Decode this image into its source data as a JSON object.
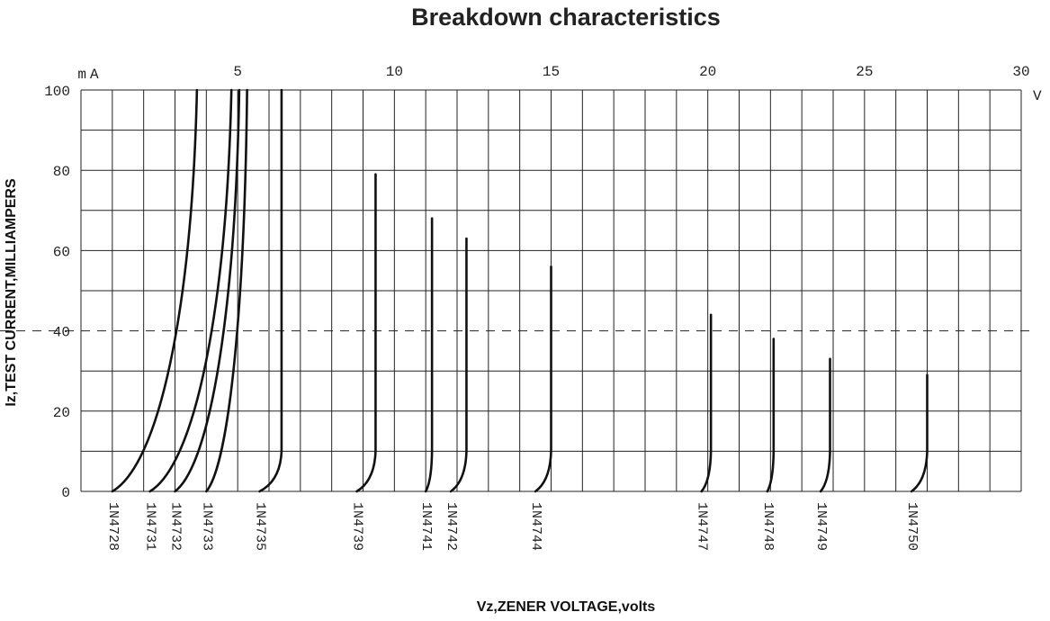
{
  "chart_data": {
    "type": "line",
    "title": "Breakdown characteristics",
    "xlabel": "Vz,ZENER VOLTAGE,volts",
    "ylabel": "Iz,TEST CURRENT,MILLIAMPERS",
    "x_unit": "V",
    "y_unit": "mA",
    "xlim": [
      0,
      30
    ],
    "ylim": [
      0,
      100
    ],
    "x_ticks": [
      "5",
      "10",
      "15",
      "20",
      "25",
      "30"
    ],
    "y_ticks": [
      "0",
      "20",
      "40",
      "60",
      "80",
      "100"
    ],
    "grid": true,
    "reference_line": {
      "y": 40,
      "style": "dashed"
    },
    "series": [
      {
        "name": "1N4728",
        "vz_at_0": 1.0,
        "vz_at_top": 3.7,
        "top_current": 100,
        "shape": "soft"
      },
      {
        "name": "1N4731",
        "vz_at_0": 2.2,
        "vz_at_top": 4.8,
        "top_current": 100,
        "shape": "soft"
      },
      {
        "name": "1N4732",
        "vz_at_0": 3.0,
        "vz_at_top": 5.05,
        "top_current": 100,
        "shape": "soft"
      },
      {
        "name": "1N4733",
        "vz_at_0": 4.0,
        "vz_at_top": 5.3,
        "top_current": 100,
        "shape": "soft"
      },
      {
        "name": "1N4735",
        "vz_at_0": 5.7,
        "vz_at_top": 6.4,
        "top_current": 100,
        "shape": "sharp"
      },
      {
        "name": "1N4739",
        "vz_at_0": 8.8,
        "vz_at_top": 9.4,
        "top_current": 79,
        "shape": "sharp"
      },
      {
        "name": "1N4741",
        "vz_at_0": 11.0,
        "vz_at_top": 11.2,
        "top_current": 68,
        "shape": "sharp"
      },
      {
        "name": "1N4742",
        "vz_at_0": 11.8,
        "vz_at_top": 12.3,
        "top_current": 63,
        "shape": "sharp"
      },
      {
        "name": "1N4744",
        "vz_at_0": 14.5,
        "vz_at_top": 15.0,
        "top_current": 56,
        "shape": "sharp"
      },
      {
        "name": "1N4747",
        "vz_at_0": 19.8,
        "vz_at_top": 20.1,
        "top_current": 44,
        "shape": "sharp"
      },
      {
        "name": "1N4748",
        "vz_at_0": 21.9,
        "vz_at_top": 22.1,
        "top_current": 38,
        "shape": "sharp"
      },
      {
        "name": "1N4749",
        "vz_at_0": 23.6,
        "vz_at_top": 23.9,
        "top_current": 33,
        "shape": "sharp"
      },
      {
        "name": "1N4750",
        "vz_at_0": 26.5,
        "vz_at_top": 27.0,
        "top_current": 29,
        "shape": "sharp"
      }
    ]
  }
}
